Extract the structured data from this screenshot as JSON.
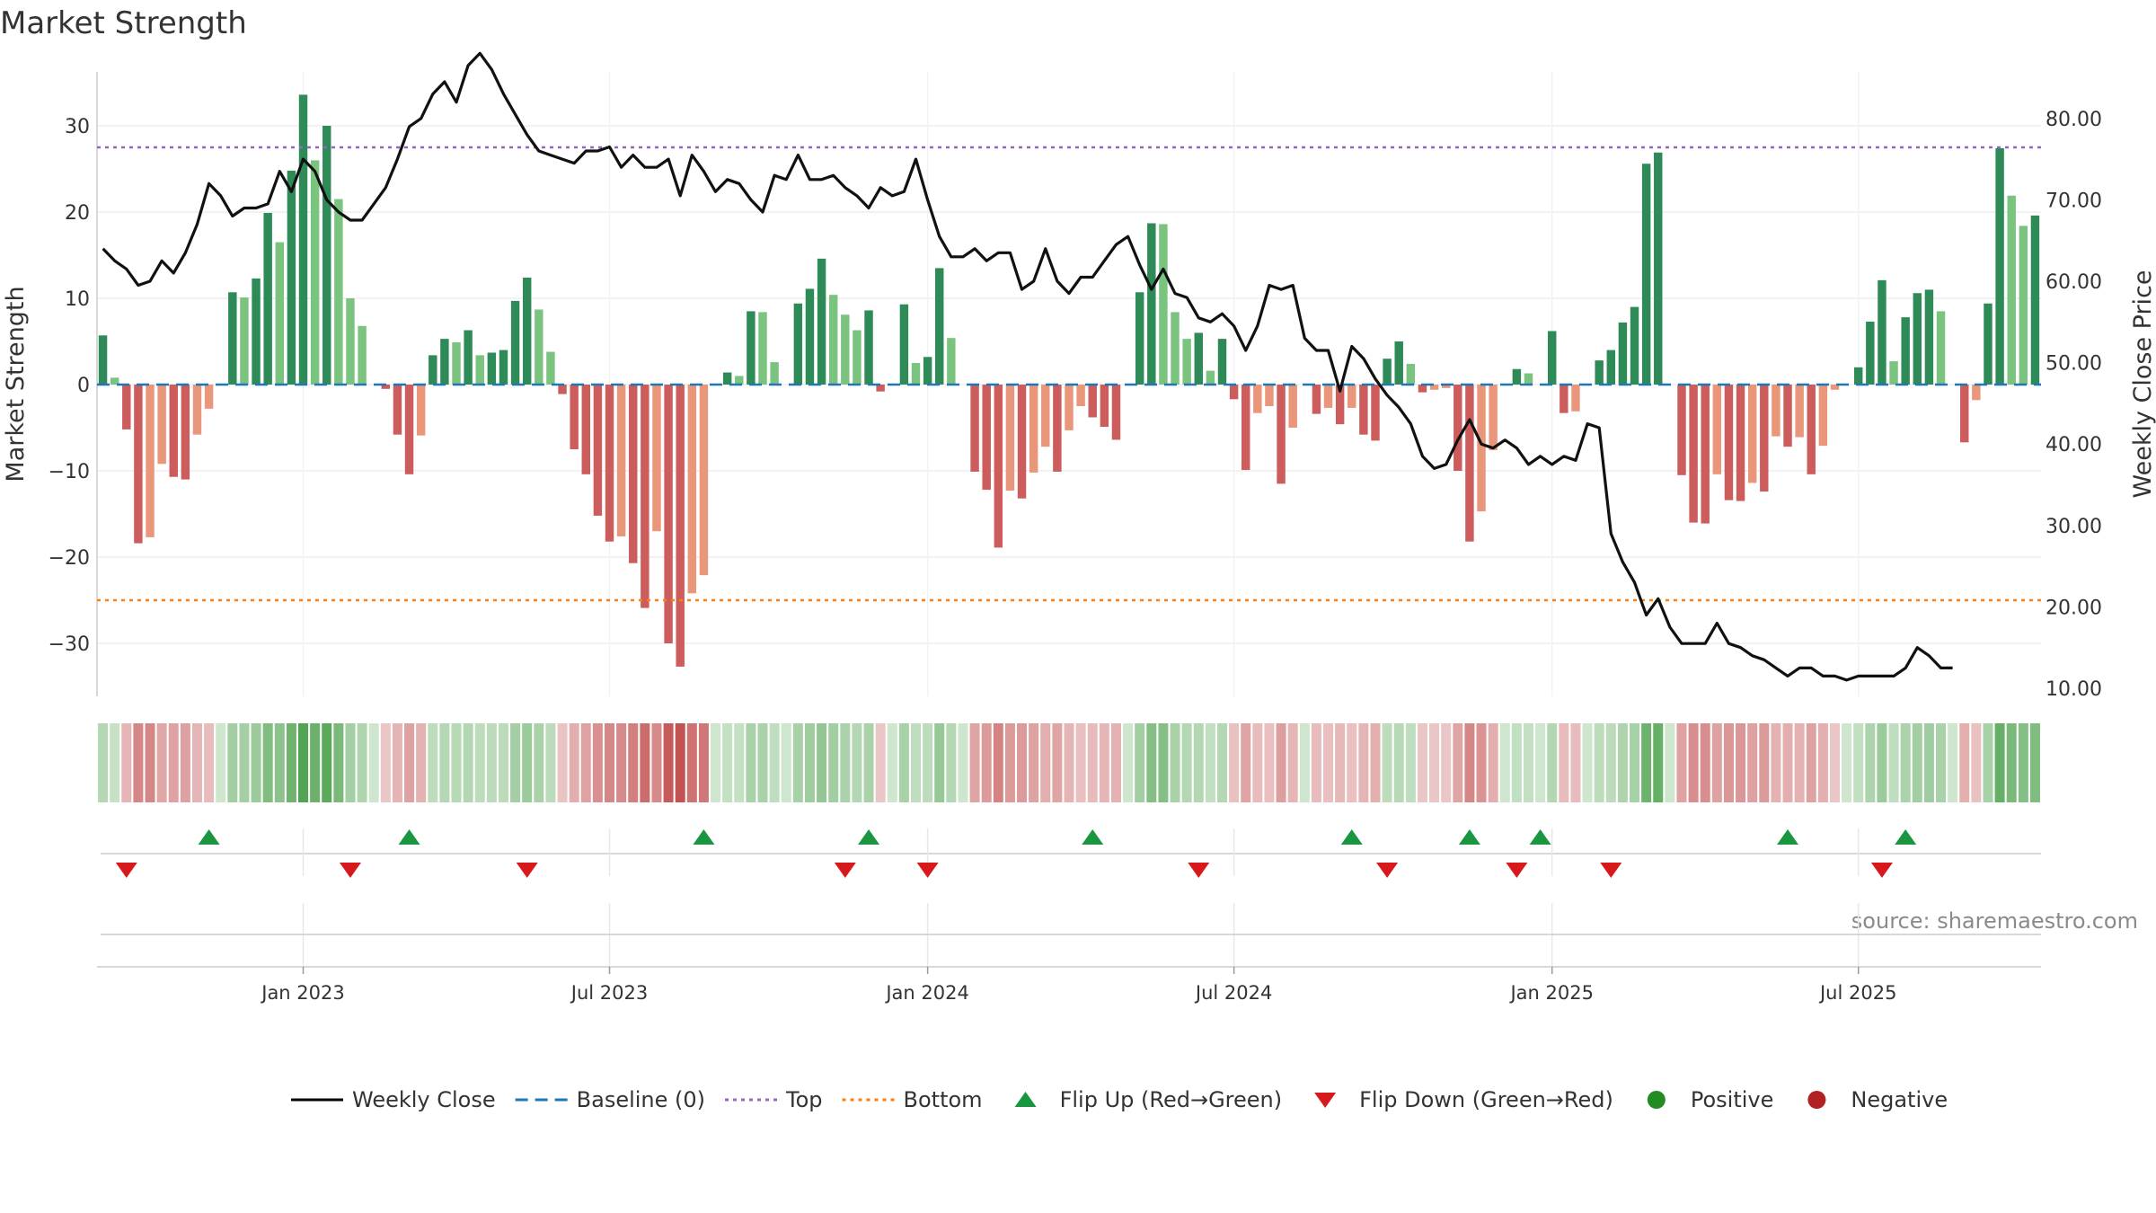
{
  "chart_data": {
    "type": "bar",
    "title": "Market Strength",
    "ylabel": "Market Strength",
    "y2label": "Weekly Close Price",
    "source": "source: sharemaestro.com",
    "ylim": [
      -36,
      36
    ],
    "y2lim": [
      7,
      85
    ],
    "yticks": [
      30,
      20,
      10,
      0,
      -10,
      -20,
      -30
    ],
    "ytick_labels": [
      "30",
      "20",
      "10",
      "0",
      "−10",
      "−20",
      "−30"
    ],
    "y2ticks": [
      80,
      70,
      60,
      50,
      40,
      30,
      20,
      10
    ],
    "y2tick_labels": [
      "80.00",
      "70.00",
      "60.00",
      "50.00",
      "40.00",
      "30.00",
      "20.00",
      "10.00"
    ],
    "xticks": [
      {
        "week": 17,
        "label": "Jan 2023"
      },
      {
        "week": 43,
        "label": "Jul 2023"
      },
      {
        "week": 70,
        "label": "Jan 2024"
      },
      {
        "week": 96,
        "label": "Jul 2024"
      },
      {
        "week": 123,
        "label": "Jan 2025"
      },
      {
        "week": 149,
        "label": "Jul 2025"
      }
    ],
    "top_line": 27.5,
    "bottom_line": -25,
    "strength": [
      5.7,
      0.8,
      -5.2,
      -18.4,
      -17.7,
      -9.2,
      -10.7,
      -11,
      -5.8,
      -2.8,
      0,
      10.7,
      10.1,
      12.3,
      19.9,
      16.5,
      24.8,
      33.6,
      26,
      30,
      21.5,
      10,
      6.8,
      0,
      -0.5,
      -5.8,
      -10.4,
      -5.9,
      3.4,
      5.3,
      4.9,
      6.3,
      3.4,
      3.7,
      4,
      9.7,
      12.4,
      8.7,
      3.8,
      -1.1,
      -7.5,
      -10.4,
      -15.2,
      -18.2,
      -17.6,
      -20.7,
      -25.9,
      -17,
      -30,
      -32.7,
      -24.2,
      -22.1,
      0,
      1.4,
      1,
      8.5,
      8.4,
      2.6,
      0,
      9.4,
      11.1,
      14.6,
      10.4,
      8.1,
      6.3,
      8.6,
      -0.8,
      0,
      9.3,
      2.5,
      3.2,
      13.5,
      5.4,
      0,
      -10.1,
      -12.2,
      -18.9,
      -12.3,
      -13.2,
      -10.2,
      -7.2,
      -10.1,
      -5.3,
      -2.5,
      -3.8,
      -4.9,
      -6.4,
      0,
      10.7,
      18.7,
      18.6,
      8.4,
      5.3,
      6,
      1.6,
      5.3,
      -1.7,
      -9.9,
      -3.3,
      -2.5,
      -11.5,
      -5,
      0,
      -3.4,
      -2.7,
      -4.6,
      -2.7,
      -5.8,
      -6.5,
      3,
      5,
      2.4,
      -0.9,
      -0.6,
      -0.4,
      -10,
      -18.2,
      -14.7,
      -7.6,
      0,
      1.8,
      1.3,
      0,
      6.2,
      -3.3,
      -3.1,
      0,
      2.8,
      4,
      7.2,
      9,
      25.6,
      26.9,
      0,
      -10.5,
      -16,
      -16.1,
      -10.4,
      -13.4,
      -13.5,
      -11.4,
      -12.4,
      -6,
      -7.2,
      -6.1,
      -10.4,
      -7.1,
      -0.6,
      0,
      2,
      7.3,
      12.1,
      2.7,
      7.8,
      10.6,
      11,
      8.5,
      0,
      -6.7,
      -1.8,
      9.4,
      27.4,
      21.9,
      18.4,
      19.6
    ],
    "weekly_close": [
      64,
      62.5,
      61.5,
      59.5,
      60,
      62.5,
      61,
      63.5,
      67,
      72,
      70.5,
      68,
      69,
      69,
      69.5,
      73.5,
      71,
      75,
      73.5,
      70,
      68.5,
      67.5,
      67.5,
      69.5,
      71.5,
      75,
      79,
      80,
      83,
      84.5,
      82,
      86.5,
      88,
      86,
      83,
      80.5,
      78,
      76,
      75.5,
      75,
      74.5,
      76,
      76,
      76.5,
      74,
      75.5,
      74,
      74,
      75,
      70.5,
      75.5,
      73.5,
      71,
      72.5,
      72,
      70,
      68.5,
      73,
      72.5,
      75.5,
      72.5,
      72.5,
      73,
      71.5,
      70.5,
      69,
      71.5,
      70.5,
      71,
      75,
      70,
      65.5,
      63,
      63,
      64,
      62.5,
      63.5,
      63.5,
      59,
      60,
      64,
      60,
      58.5,
      60.5,
      60.5,
      62.5,
      64.5,
      65.5,
      62,
      59,
      61.5,
      58.5,
      58,
      55.5,
      55,
      56,
      54.5,
      51.5,
      54.5,
      59.5,
      59,
      59.5,
      53,
      51.5,
      51.5,
      46.5,
      52,
      50.5,
      48,
      46,
      44.5,
      42.5,
      38.5,
      37,
      37.5,
      40.5,
      43,
      40,
      39.5,
      40.5,
      39.5,
      37.5,
      38.5,
      37.5,
      38.5,
      38,
      42.5,
      42,
      29,
      25.5,
      23,
      19,
      21,
      17.5,
      15.5,
      15.5,
      15.5,
      18,
      15.5,
      15,
      14,
      13.5,
      12.5,
      11.5,
      12.5,
      12.5,
      11.5,
      11.5,
      11,
      11.5,
      11.5,
      11.5,
      11.5,
      12.5,
      15,
      14,
      12.5,
      12.5
    ],
    "flip_up_weeks": [
      9,
      26,
      51,
      65,
      84,
      106,
      116,
      122,
      143,
      153
    ],
    "flip_down_weeks": [
      2,
      21,
      36,
      63,
      70,
      93,
      109,
      120,
      128,
      151
    ],
    "legend": [
      {
        "label": "Weekly Close",
        "kind": "line",
        "color": "#000000"
      },
      {
        "label": "Baseline (0)",
        "kind": "dash",
        "color": "#1f77b4"
      },
      {
        "label": "Top",
        "kind": "dot",
        "color": "#9467bd"
      },
      {
        "label": "Bottom",
        "kind": "dot",
        "color": "#ff7f0e"
      },
      {
        "label": "Flip Up (Red→Green)",
        "kind": "tri-up",
        "color": "#1a9641"
      },
      {
        "label": "Flip Down (Green→Red)",
        "kind": "tri-down",
        "color": "#d7191c"
      },
      {
        "label": "Positive",
        "kind": "dot-marker",
        "color": "#228b22"
      },
      {
        "label": "Negative",
        "kind": "dot-marker",
        "color": "#b22222"
      }
    ],
    "colors": {
      "pos_strong": "#2e8b57",
      "pos_weak": "#7bc47f",
      "neg_strong": "#cd5c5c",
      "neg_weak": "#e9967a",
      "baseline": "#1f77b4",
      "top": "#9467bd",
      "bottom": "#ff7f0e",
      "flip_up": "#1a9641",
      "flip_down": "#d7191c"
    },
    "grid": true
  }
}
